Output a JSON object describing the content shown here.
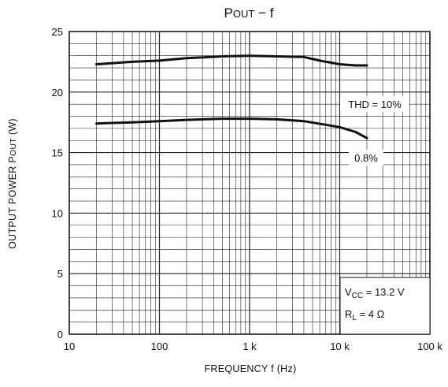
{
  "chart_data": {
    "type": "line",
    "title_main": "P",
    "title_sub": "OUT",
    "title_rest": " − f",
    "xlabel": "FREQUENCY   f   (Hz)",
    "ylabel_main": "OUTPUT POWER   P",
    "ylabel_sub": "OUT",
    "ylabel_unit": "  (W)",
    "x_scale": "log",
    "xlim": [
      10,
      100000
    ],
    "ylim": [
      0,
      25
    ],
    "x_ticks": [
      10,
      100,
      1000,
      10000,
      100000
    ],
    "x_tick_labels": [
      "10",
      "100",
      "1 k",
      "10 k",
      "100 k"
    ],
    "y_ticks": [
      0,
      5,
      10,
      15,
      20,
      25
    ],
    "y_tick_labels": [
      "0",
      "5",
      "10",
      "15",
      "20",
      "25"
    ],
    "grid": true,
    "series": [
      {
        "name": "THD = 10%",
        "x": [
          20,
          50,
          100,
          200,
          500,
          1000,
          2000,
          4000,
          6000,
          10000,
          15000,
          20000
        ],
        "y": [
          22.3,
          22.5,
          22.6,
          22.8,
          22.95,
          23.0,
          22.95,
          22.9,
          22.6,
          22.3,
          22.2,
          22.2
        ]
      },
      {
        "name": "0.8%",
        "x": [
          20,
          50,
          100,
          200,
          500,
          1000,
          2000,
          4000,
          7000,
          10000,
          15000,
          20000
        ],
        "y": [
          17.4,
          17.5,
          17.6,
          17.7,
          17.8,
          17.8,
          17.75,
          17.6,
          17.3,
          17.1,
          16.7,
          16.2
        ]
      }
    ],
    "conditions": {
      "vcc_main": "V",
      "vcc_sub": "CC",
      "vcc_value": " = 13.2 V",
      "rl_main": "R",
      "rl_sub": "L",
      "rl_value": " = 4 Ω"
    }
  }
}
